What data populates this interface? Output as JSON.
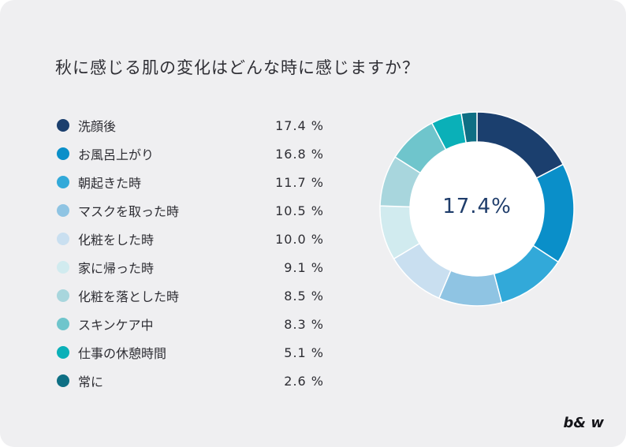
{
  "title": "秋に感じる肌の変化はどんな時に感じますか？",
  "center_value": "17.4%",
  "brand": "b& w",
  "chart_data": {
    "type": "pie",
    "title": "秋に感じる肌の変化はどんな時に感じますか？",
    "categories": [
      "洗顔後",
      "お風呂上がり",
      "朝起きた時",
      "マスクを取った時",
      "化粧をした時",
      "家に帰った時",
      "化粧を落とした時",
      "スキンケア中",
      "仕事の休憩時間",
      "常に"
    ],
    "values": [
      17.4,
      16.8,
      11.7,
      10.5,
      10.0,
      9.1,
      8.5,
      8.3,
      5.1,
      2.6
    ],
    "value_labels": [
      "17.4 %",
      "16.8 %",
      "11.7 %",
      "10.5 %",
      "10.0 %",
      "9.1 %",
      "8.5 %",
      "8.3 %",
      "5.1 %",
      "2.6 %"
    ],
    "colors": [
      "#1b3f6e",
      "#0a8fc9",
      "#32a9d9",
      "#8fc4e3",
      "#c9dff0",
      "#d1ebef",
      "#a8d6dd",
      "#6fc5cc",
      "#0ab0b8",
      "#0e6f84"
    ],
    "donut": true,
    "legend_position": "left"
  }
}
